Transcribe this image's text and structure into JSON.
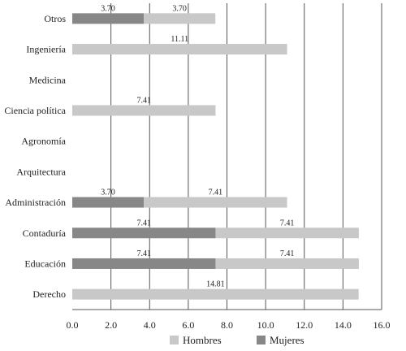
{
  "chart_data": {
    "type": "bar",
    "orientation": "horizontal",
    "stacked": true,
    "categories": [
      "Otros",
      "Ingeniería",
      "Medicina",
      "Ciencia política",
      "Agronomía",
      "Arquitectura",
      "Administración",
      "Contaduría",
      "Educación",
      "Derecho"
    ],
    "series": [
      {
        "name": "Mujeres",
        "color": "#878787",
        "values": [
          3.7,
          0,
          0,
          0,
          0,
          0,
          3.7,
          7.41,
          7.41,
          0
        ]
      },
      {
        "name": "Hombres",
        "color": "#c8c8c8",
        "values": [
          3.7,
          11.11,
          0,
          7.41,
          0,
          0,
          7.41,
          7.41,
          7.41,
          14.81
        ]
      }
    ],
    "data_labels": {
      "Mujeres": [
        "3.70",
        "",
        "",
        "",
        "",
        "",
        "3.70",
        "7.41",
        "7.41",
        ""
      ],
      "Hombres": [
        "3.70",
        "11.11",
        "",
        "7.41",
        "",
        "",
        "7.41",
        "7.41",
        "7.41",
        "14.81"
      ]
    },
    "xlim": [
      0,
      16
    ],
    "xticks": [
      "0.0",
      "2.0",
      "4.0",
      "6.0",
      "8.0",
      "10.0",
      "12.0",
      "14.0",
      "16.0"
    ],
    "grid": true,
    "legend_position": "bottom",
    "legend": [
      "Hombres",
      "Mujeres"
    ]
  }
}
